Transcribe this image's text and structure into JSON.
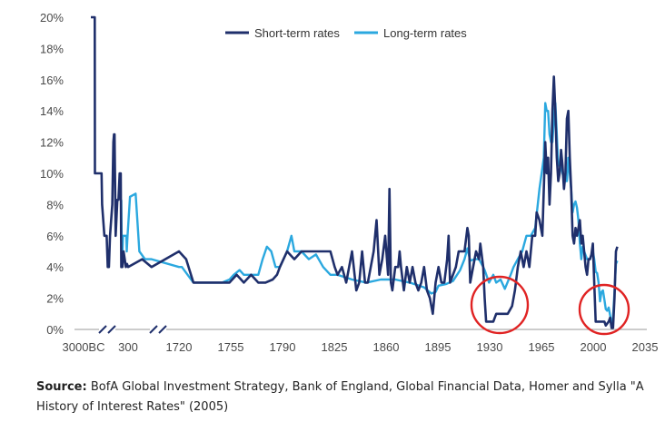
{
  "chart_data": {
    "type": "line",
    "title": "",
    "xlabel": "",
    "ylabel": "",
    "ylim": [
      0,
      20
    ],
    "y_ticks": [
      "0%",
      "2%",
      "4%",
      "6%",
      "8%",
      "10%",
      "12%",
      "14%",
      "16%",
      "18%",
      "20%"
    ],
    "x_ticks": [
      "3000BC",
      "300",
      "1720",
      "1755",
      "1790",
      "1825",
      "1860",
      "1895",
      "1930",
      "1965",
      "2000",
      "2035"
    ],
    "axis_breaks": 2,
    "legend": [
      "Short-term rates",
      "Long-term rates"
    ],
    "legend_position": "top",
    "highlight_circles": [
      "1930s-1950s low rates",
      "2010s low rates"
    ],
    "series": [
      {
        "name": "Short-term rates",
        "color": "#1f2f6b",
        "points": [
          [
            -3000,
            20
          ],
          [
            -2650,
            20
          ],
          [
            -2640,
            10
          ],
          [
            -2200,
            10
          ],
          [
            -2050,
            10
          ],
          [
            -2000,
            8
          ],
          [
            -1800,
            6
          ],
          [
            -1600,
            6
          ],
          [
            -1500,
            4
          ],
          [
            -1400,
            4
          ],
          [
            -1300,
            6
          ],
          [
            -1100,
            8
          ],
          [
            -1000,
            12
          ],
          [
            -950,
            12.5
          ],
          [
            -900,
            12.5
          ],
          [
            -800,
            6
          ],
          [
            -650,
            8.3
          ],
          [
            -550,
            8.3
          ],
          [
            -450,
            10
          ],
          [
            -350,
            10
          ],
          [
            -300,
            4
          ],
          [
            -200,
            4
          ],
          [
            -100,
            5
          ],
          [
            0,
            4.5
          ],
          [
            100,
            4
          ],
          [
            200,
            4.2
          ],
          [
            300,
            4
          ],
          [
            450,
            4.5
          ],
          [
            550,
            4
          ],
          [
            1718,
            5
          ],
          [
            1725,
            4.5
          ],
          [
            1730,
            3
          ],
          [
            1740,
            3
          ],
          [
            1750,
            3
          ],
          [
            1755,
            3
          ],
          [
            1760,
            3.5
          ],
          [
            1765,
            3
          ],
          [
            1770,
            3.5
          ],
          [
            1775,
            3
          ],
          [
            1780,
            3
          ],
          [
            1785,
            3.2
          ],
          [
            1788,
            3.5
          ],
          [
            1790,
            4
          ],
          [
            1795,
            5
          ],
          [
            1800,
            4.5
          ],
          [
            1805,
            5
          ],
          [
            1810,
            5
          ],
          [
            1815,
            5
          ],
          [
            1820,
            5
          ],
          [
            1825,
            5
          ],
          [
            1828,
            4
          ],
          [
            1830,
            3.5
          ],
          [
            1833,
            4
          ],
          [
            1836,
            3
          ],
          [
            1840,
            5
          ],
          [
            1843,
            2.5
          ],
          [
            1845,
            3
          ],
          [
            1847,
            5
          ],
          [
            1849,
            3
          ],
          [
            1851,
            3
          ],
          [
            1853,
            4
          ],
          [
            1855,
            5
          ],
          [
            1857,
            7
          ],
          [
            1859,
            3.5
          ],
          [
            1861,
            4.5
          ],
          [
            1863,
            6
          ],
          [
            1865,
            3.5
          ],
          [
            1866,
            9
          ],
          [
            1867,
            3
          ],
          [
            1868,
            2.5
          ],
          [
            1870,
            4
          ],
          [
            1872,
            4
          ],
          [
            1873,
            5
          ],
          [
            1874,
            4
          ],
          [
            1876,
            2.5
          ],
          [
            1878,
            4
          ],
          [
            1880,
            3
          ],
          [
            1882,
            4
          ],
          [
            1884,
            3
          ],
          [
            1886,
            2.5
          ],
          [
            1888,
            3
          ],
          [
            1890,
            4
          ],
          [
            1892,
            2.5
          ],
          [
            1894,
            2
          ],
          [
            1896,
            1
          ],
          [
            1898,
            3
          ],
          [
            1900,
            4
          ],
          [
            1902,
            3
          ],
          [
            1904,
            3
          ],
          [
            1906,
            4.5
          ],
          [
            1907,
            6
          ],
          [
            1908,
            3
          ],
          [
            1910,
            3.5
          ],
          [
            1912,
            4
          ],
          [
            1914,
            5
          ],
          [
            1916,
            5
          ],
          [
            1918,
            5
          ],
          [
            1920,
            6.5
          ],
          [
            1921,
            6
          ],
          [
            1922,
            3
          ],
          [
            1924,
            4
          ],
          [
            1926,
            5
          ],
          [
            1928,
            4.5
          ],
          [
            1929,
            5.5
          ],
          [
            1931,
            4
          ],
          [
            1932,
            2
          ],
          [
            1933,
            0.5
          ],
          [
            1935,
            0.5
          ],
          [
            1938,
            0.5
          ],
          [
            1940,
            1
          ],
          [
            1942,
            1
          ],
          [
            1945,
            1
          ],
          [
            1948,
            1
          ],
          [
            1951,
            1.5
          ],
          [
            1953,
            2.5
          ],
          [
            1955,
            4
          ],
          [
            1957,
            5
          ],
          [
            1959,
            4
          ],
          [
            1961,
            5
          ],
          [
            1963,
            4
          ],
          [
            1965,
            6
          ],
          [
            1967,
            6
          ],
          [
            1968,
            7.5
          ],
          [
            1970,
            7
          ],
          [
            1972,
            6
          ],
          [
            1973,
            9
          ],
          [
            1974,
            12
          ],
          [
            1975,
            10
          ],
          [
            1976,
            11
          ],
          [
            1977,
            8
          ],
          [
            1978,
            10
          ],
          [
            1979,
            14
          ],
          [
            1980,
            16.2
          ],
          [
            1981,
            14
          ],
          [
            1982,
            11
          ],
          [
            1983,
            9.5
          ],
          [
            1984,
            10
          ],
          [
            1985,
            11.5
          ],
          [
            1986,
            10.5
          ],
          [
            1987,
            9
          ],
          [
            1988,
            10
          ],
          [
            1989,
            13.5
          ],
          [
            1990,
            14
          ],
          [
            1991,
            11
          ],
          [
            1992,
            9
          ],
          [
            1993,
            6
          ],
          [
            1994,
            5.5
          ],
          [
            1995,
            6.5
          ],
          [
            1996,
            6
          ],
          [
            1997,
            6.5
          ],
          [
            1998,
            7
          ],
          [
            1999,
            5.5
          ],
          [
            2000,
            6
          ],
          [
            2001,
            5
          ],
          [
            2002,
            4
          ],
          [
            2003,
            3.5
          ],
          [
            2004,
            4.5
          ],
          [
            2005,
            4.5
          ],
          [
            2006,
            4.8
          ],
          [
            2007,
            5.5
          ],
          [
            2008,
            3
          ],
          [
            2009,
            0.5
          ],
          [
            2012,
            0.5
          ],
          [
            2015,
            0.5
          ],
          [
            2016,
            0.25
          ],
          [
            2018,
            0.5
          ],
          [
            2019,
            0.75
          ],
          [
            2020,
            0.1
          ],
          [
            2021,
            0.1
          ],
          [
            2022,
            2
          ],
          [
            2023,
            5
          ],
          [
            2024,
            5.3
          ]
        ]
      },
      {
        "name": "Long-term rates",
        "color": "#2ba8df",
        "points": [
          [
            -300,
            8.3
          ],
          [
            -250,
            4
          ],
          [
            -150,
            6
          ],
          [
            50,
            6
          ],
          [
            150,
            6
          ],
          [
            180,
            5
          ],
          [
            250,
            6
          ],
          [
            320,
            8.5
          ],
          [
            380,
            8.7
          ],
          [
            420,
            5
          ],
          [
            480,
            4.5
          ],
          [
            550,
            4.5
          ],
          [
            1718,
            4
          ],
          [
            1722,
            4
          ],
          [
            1726,
            3.5
          ],
          [
            1730,
            3
          ],
          [
            1740,
            3
          ],
          [
            1750,
            3
          ],
          [
            1755,
            3.2
          ],
          [
            1758,
            3.5
          ],
          [
            1762,
            3.8
          ],
          [
            1765,
            3.5
          ],
          [
            1770,
            3.5
          ],
          [
            1775,
            3.5
          ],
          [
            1778,
            4.5
          ],
          [
            1781,
            5.3
          ],
          [
            1784,
            5
          ],
          [
            1787,
            4
          ],
          [
            1790,
            4
          ],
          [
            1795,
            5
          ],
          [
            1798,
            6
          ],
          [
            1800,
            5
          ],
          [
            1805,
            5
          ],
          [
            1810,
            4.5
          ],
          [
            1815,
            4.8
          ],
          [
            1820,
            4
          ],
          [
            1825,
            3.5
          ],
          [
            1830,
            3.5
          ],
          [
            1840,
            3.2
          ],
          [
            1850,
            3
          ],
          [
            1860,
            3.2
          ],
          [
            1870,
            3.2
          ],
          [
            1880,
            3
          ],
          [
            1890,
            2.7
          ],
          [
            1895,
            2.3
          ],
          [
            1898,
            2.4
          ],
          [
            1900,
            2.8
          ],
          [
            1905,
            2.9
          ],
          [
            1910,
            3.1
          ],
          [
            1915,
            3.8
          ],
          [
            1918,
            4.5
          ],
          [
            1920,
            5.2
          ],
          [
            1922,
            4.4
          ],
          [
            1925,
            4.5
          ],
          [
            1928,
            4.5
          ],
          [
            1931,
            4
          ],
          [
            1932,
            3.8
          ],
          [
            1935,
            3
          ],
          [
            1938,
            3.5
          ],
          [
            1940,
            3
          ],
          [
            1943,
            3.2
          ],
          [
            1946,
            2.6
          ],
          [
            1950,
            3.5
          ],
          [
            1952,
            4
          ],
          [
            1955,
            4.5
          ],
          [
            1958,
            5
          ],
          [
            1961,
            6
          ],
          [
            1964,
            6
          ],
          [
            1967,
            6.5
          ],
          [
            1970,
            9
          ],
          [
            1973,
            11
          ],
          [
            1974,
            14.5
          ],
          [
            1975,
            14
          ],
          [
            1976,
            14
          ],
          [
            1977,
            12.5
          ],
          [
            1978,
            12
          ],
          [
            1979,
            12
          ],
          [
            1980,
            13.5
          ],
          [
            1981,
            14.5
          ],
          [
            1982,
            12.5
          ],
          [
            1983,
            10.5
          ],
          [
            1985,
            10.5
          ],
          [
            1987,
            9.5
          ],
          [
            1989,
            9.5
          ],
          [
            1990,
            11
          ],
          [
            1992,
            9
          ],
          [
            1993,
            7.5
          ],
          [
            1994,
            8
          ],
          [
            1995,
            8.2
          ],
          [
            1996,
            7.8
          ],
          [
            1997,
            7
          ],
          [
            1998,
            5.5
          ],
          [
            1999,
            4.5
          ],
          [
            2000,
            5.3
          ],
          [
            2001,
            5
          ],
          [
            2003,
            4.5
          ],
          [
            2005,
            4.5
          ],
          [
            2007,
            5
          ],
          [
            2008,
            4.5
          ],
          [
            2009,
            3.7
          ],
          [
            2010,
            3.6
          ],
          [
            2011,
            3
          ],
          [
            2012,
            1.8
          ],
          [
            2013,
            2.4
          ],
          [
            2014,
            2.5
          ],
          [
            2015,
            1.9
          ],
          [
            2016,
            1.3
          ],
          [
            2017,
            1.2
          ],
          [
            2018,
            1.4
          ],
          [
            2019,
            0.9
          ],
          [
            2020,
            0.3
          ],
          [
            2021,
            0.8
          ],
          [
            2022,
            2.4
          ],
          [
            2023,
            4.2
          ],
          [
            2024,
            4.4
          ]
        ]
      }
    ]
  },
  "source": {
    "label": "Source:",
    "text": "BofA Global Investment Strategy, Bank of England, Global Financial Data, Homer and Sylla \"A History of Interest Rates\" (2005)"
  }
}
